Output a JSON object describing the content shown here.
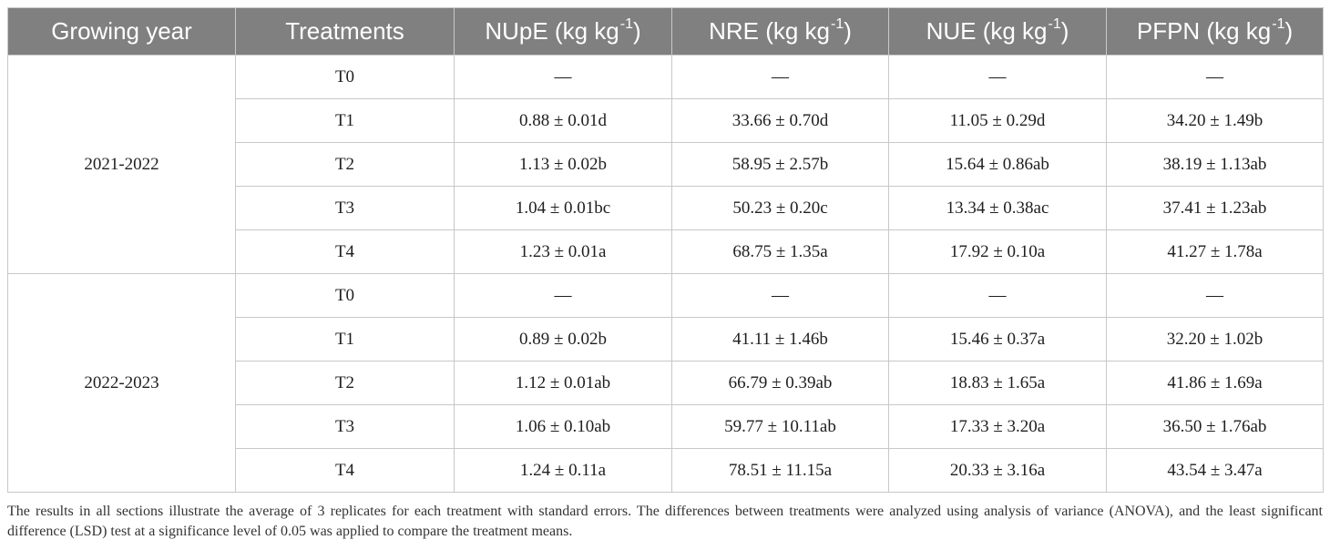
{
  "table": {
    "headers": {
      "growing_year": "Growing year",
      "treatments": "Treatments",
      "columns": [
        {
          "prefix": "NUpE (kg kg",
          "sup": "-1",
          "suffix": ")"
        },
        {
          "prefix": "NRE (kg kg",
          "sup": "-1",
          "suffix": ")"
        },
        {
          "prefix": "NUE (kg kg",
          "sup": "-1",
          "suffix": ")"
        },
        {
          "prefix": "PFPN (kg kg",
          "sup": "-1",
          "suffix": ")"
        }
      ]
    },
    "groups": [
      {
        "year": "2021-2022",
        "rows": [
          {
            "treatment": "T0",
            "values": [
              "—",
              "—",
              "—",
              "—"
            ]
          },
          {
            "treatment": "T1",
            "values": [
              "0.88 ± 0.01d",
              "33.66 ± 0.70d",
              "11.05 ± 0.29d",
              "34.20 ± 1.49b"
            ]
          },
          {
            "treatment": "T2",
            "values": [
              "1.13 ± 0.02b",
              "58.95 ± 2.57b",
              "15.64 ± 0.86ab",
              "38.19 ± 1.13ab"
            ]
          },
          {
            "treatment": "T3",
            "values": [
              "1.04 ± 0.01bc",
              "50.23 ± 0.20c",
              "13.34 ± 0.38ac",
              "37.41 ± 1.23ab"
            ]
          },
          {
            "treatment": "T4",
            "values": [
              "1.23 ± 0.01a",
              "68.75 ± 1.35a",
              "17.92 ± 0.10a",
              "41.27 ± 1.78a"
            ]
          }
        ]
      },
      {
        "year": "2022-2023",
        "rows": [
          {
            "treatment": "T0",
            "values": [
              "—",
              "—",
              "—",
              "—"
            ]
          },
          {
            "treatment": "T1",
            "values": [
              "0.89 ± 0.02b",
              "41.11 ± 1.46b",
              "15.46 ± 0.37a",
              "32.20 ± 1.02b"
            ]
          },
          {
            "treatment": "T2",
            "values": [
              "1.12 ± 0.01ab",
              "66.79 ± 0.39ab",
              "18.83 ± 1.65a",
              "41.86 ± 1.69a"
            ]
          },
          {
            "treatment": "T3",
            "values": [
              "1.06 ± 0.10ab",
              "59.77 ± 10.11ab",
              "17.33 ± 3.20a",
              "36.50 ± 1.76ab"
            ]
          },
          {
            "treatment": "T4",
            "values": [
              "1.24 ± 0.11a",
              "78.51 ± 11.15a",
              "20.33 ± 3.16a",
              "43.54 ± 3.47a"
            ]
          }
        ]
      }
    ]
  },
  "footnote": "The results in all sections illustrate the average of 3 replicates for each treatment with standard errors. The differences between treatments were analyzed using analysis of variance (ANOVA), and the least significant difference (LSD) test at a significance level of 0.05 was applied to compare the treatment means.",
  "colors": {
    "header_bg": "#808080",
    "header_text": "#ffffff",
    "header_divider": "#c9c9c9",
    "border": "#c8c8c8",
    "body_text": "#1e1e1e",
    "footnote_text": "#333333"
  }
}
